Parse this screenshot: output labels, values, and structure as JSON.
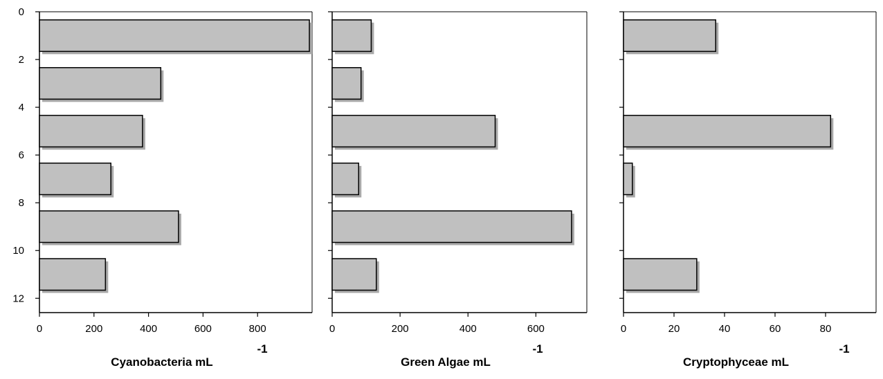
{
  "chart_data": [
    {
      "type": "bar",
      "orientation": "horizontal",
      "y": [
        1,
        3,
        5,
        7,
        9,
        11
      ],
      "values": [
        990,
        445,
        378,
        262,
        510,
        242
      ],
      "xlabel": "Cyanobacteria mL",
      "xlabel_superscript": "-1",
      "xlim": [
        0,
        1000
      ],
      "xticks": [
        0,
        200,
        400,
        600,
        800
      ],
      "ylim": [
        12.6,
        0
      ],
      "yticks": [
        0,
        2,
        4,
        6,
        8,
        10,
        12
      ],
      "grid": false,
      "bar_color": "#c0c0c0"
    },
    {
      "type": "bar",
      "orientation": "horizontal",
      "y": [
        1,
        3,
        5,
        7,
        9,
        11
      ],
      "values": [
        115,
        85,
        480,
        78,
        705,
        130
      ],
      "xlabel": "Green Algae mL",
      "xlabel_superscript": "-1",
      "xlim": [
        0,
        750
      ],
      "xticks": [
        0,
        200,
        400,
        600
      ],
      "ylim": [
        12.6,
        0
      ],
      "yticks": [
        0,
        2,
        4,
        6,
        8,
        10,
        12
      ],
      "grid": false,
      "bar_color": "#c0c0c0"
    },
    {
      "type": "bar",
      "orientation": "horizontal",
      "y": [
        1,
        3,
        5,
        7,
        9,
        11
      ],
      "values": [
        36.5,
        0,
        82,
        3.5,
        0,
        29
      ],
      "xlabel": "Cryptophyceae mL",
      "xlabel_superscript": "-1",
      "xlim": [
        0,
        100
      ],
      "xticks": [
        0,
        20,
        40,
        60,
        80
      ],
      "ylim": [
        12.6,
        0
      ],
      "yticks": [
        0,
        2,
        4,
        6,
        8,
        10,
        12
      ],
      "grid": false,
      "bar_color": "#c0c0c0"
    }
  ]
}
